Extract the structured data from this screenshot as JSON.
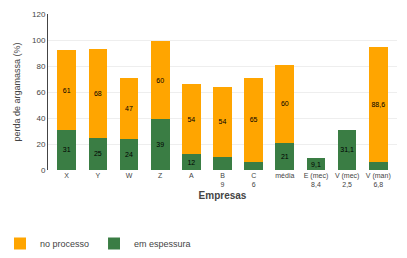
{
  "chart_data": {
    "type": "bar",
    "stacked": true,
    "xlabel": "Empresas",
    "ylabel": "perda de argamassa (%)",
    "categories": [
      "X",
      "Y",
      "W",
      "Z",
      "A",
      "B\n9",
      "C\n6",
      "média",
      "E (mec)\n8,4",
      "V (mec)\n2,5",
      "V (man)\n6,8"
    ],
    "series": [
      {
        "name": "em espessura",
        "color": "#3A7D44",
        "values": [
          31,
          25,
          24,
          39,
          12,
          10,
          6,
          21,
          9.1,
          31.1,
          6.4
        ],
        "value_labels": [
          "31",
          "25",
          "24",
          "39",
          "12",
          null,
          null,
          "21",
          "9,1",
          "31,1",
          null
        ]
      },
      {
        "name": "no processo",
        "color": "#FFA500",
        "values": [
          61,
          68,
          47,
          60,
          54,
          54,
          65,
          60,
          0,
          0,
          88.6
        ],
        "value_labels": [
          "61",
          "68",
          "47",
          "60",
          "54",
          "54",
          "65",
          "60",
          null,
          null,
          "88,6"
        ]
      }
    ],
    "ylim": [
      0,
      120
    ],
    "yticks": [
      0,
      20,
      40,
      60,
      80,
      100,
      120
    ],
    "grid": true,
    "legend": "bottom",
    "data_labels": true
  }
}
